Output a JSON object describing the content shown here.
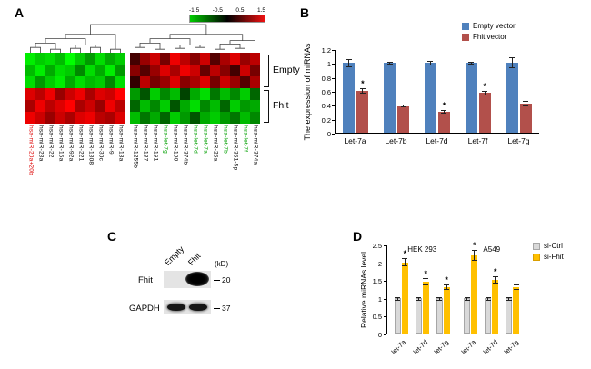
{
  "panels": {
    "a": "A",
    "b": "B",
    "c": "C",
    "d": "D"
  },
  "chart_data": {
    "heatmap": {
      "type": "heatmap",
      "colorscale": {
        "tick_labels": [
          "-1.5",
          "-0.5",
          "0.5",
          "1.5"
        ],
        "low_color": "#00cc00",
        "mid_color": "#000000",
        "high_color": "#ee1111"
      },
      "row_groups": [
        {
          "label": "Empty",
          "rows": 3
        },
        {
          "label": "Fhit",
          "rows": 3
        }
      ],
      "left_block_columns": 10,
      "columns": [
        {
          "label": "hsa-miR-20a+20b",
          "text_color": "#dd0000"
        },
        {
          "label": "hsa-miR-23a",
          "text_color": "#000000"
        },
        {
          "label": "hsa-miR-22",
          "text_color": "#000000"
        },
        {
          "label": "hsa-miR-15a",
          "text_color": "#000000"
        },
        {
          "label": "hsa-miR-92a",
          "text_color": "#000000"
        },
        {
          "label": "hsa-miR-221",
          "text_color": "#000000"
        },
        {
          "label": "hsa-miR-1308",
          "text_color": "#000000"
        },
        {
          "label": "hsa-miR-30c",
          "text_color": "#000000"
        },
        {
          "label": "hsa-miR-9",
          "text_color": "#000000"
        },
        {
          "label": "hsa-miR-18a",
          "text_color": "#000000"
        },
        {
          "label": "hsa-miR-1255b",
          "text_color": "#000000"
        },
        {
          "label": "hsa-miR-137",
          "text_color": "#000000"
        },
        {
          "label": "hsa-miR-191",
          "text_color": "#000000"
        },
        {
          "label": "hsa-let-7g",
          "text_color": "#00a000"
        },
        {
          "label": "hsa-miR-100",
          "text_color": "#000000"
        },
        {
          "label": "hsa-miR-374b",
          "text_color": "#000000"
        },
        {
          "label": "hsa-let-7d",
          "text_color": "#00a000"
        },
        {
          "label": "hsa-let-7a",
          "text_color": "#00a000"
        },
        {
          "label": "hsa-miR-26a",
          "text_color": "#000000"
        },
        {
          "label": "hsa-let-7b",
          "text_color": "#00a000"
        },
        {
          "label": "hsa-miR-361-5p",
          "text_color": "#000000"
        },
        {
          "label": "hsa-let-7f",
          "text_color": "#00a000"
        },
        {
          "label": "hsa-miR-374a",
          "text_color": "#000000"
        }
      ],
      "values": [
        [
          -1.4,
          -1.2,
          -1.3,
          -1.1,
          -1.5,
          -1.2,
          -0.9,
          -1.3,
          -1.0,
          -1.2,
          0.4,
          0.9,
          1.2,
          0.7,
          1.4,
          1.1,
          0.8,
          1.2,
          0.5,
          1.0,
          1.3,
          0.9,
          1.1
        ],
        [
          -1.1,
          -1.4,
          -1.0,
          -1.3,
          -1.2,
          -0.8,
          -1.3,
          -1.0,
          -1.4,
          -0.9,
          0.8,
          0.5,
          0.9,
          1.3,
          1.0,
          1.4,
          1.2,
          0.6,
          1.1,
          0.8,
          0.4,
          1.2,
          0.7
        ],
        [
          -1.3,
          -0.9,
          -1.2,
          -1.4,
          -1.0,
          -1.3,
          -1.1,
          -1.2,
          -0.8,
          -1.3,
          0.3,
          1.1,
          0.7,
          0.9,
          1.3,
          0.8,
          1.0,
          1.3,
          0.7,
          1.2,
          0.9,
          0.5,
          1.0
        ],
        [
          1.3,
          1.1,
          1.4,
          0.9,
          1.2,
          1.4,
          1.0,
          1.3,
          1.2,
          1.5,
          -0.9,
          -0.5,
          -1.2,
          -0.8,
          -1.1,
          -0.4,
          -1.0,
          -1.3,
          -0.7,
          -1.1,
          -0.8,
          -1.2,
          -0.6
        ],
        [
          1.0,
          1.4,
          1.1,
          1.3,
          1.5,
          1.0,
          1.2,
          0.9,
          1.4,
          1.1,
          -0.6,
          -1.1,
          -0.8,
          -1.2,
          -0.5,
          -1.0,
          -1.3,
          -0.8,
          -1.1,
          -0.6,
          -1.2,
          -0.9,
          -1.0
        ],
        [
          1.4,
          1.2,
          0.9,
          1.2,
          1.0,
          1.3,
          1.4,
          1.1,
          1.0,
          1.3,
          -1.1,
          -0.7,
          -1.0,
          -0.6,
          -1.2,
          -0.9,
          -0.5,
          -1.0,
          -1.2,
          -0.9,
          -0.7,
          -1.1,
          -0.8
        ]
      ]
    },
    "expression_bar": {
      "type": "bar",
      "ylabel": "The expression of miRNAs",
      "ylim": [
        0,
        1.2
      ],
      "ytick_labels": [
        "0",
        "0.2",
        "0.4",
        "0.6",
        "0.8",
        "1",
        "1.2"
      ],
      "categories": [
        "Let-7a",
        "Let-7b",
        "Let-7d",
        "Let-7f",
        "Let-7g"
      ],
      "sig_marker": "*",
      "series": [
        {
          "name": "Empty vector",
          "color": "#4f81bd",
          "values": [
            1.0,
            1.0,
            1.0,
            1.0,
            1.0
          ],
          "errors": [
            0.06,
            0.02,
            0.03,
            0.02,
            0.08
          ],
          "sig": [
            false,
            false,
            false,
            false,
            false
          ]
        },
        {
          "name": "Fhit vector",
          "color": "#b2504b",
          "values": [
            0.6,
            0.38,
            0.3,
            0.57,
            0.42
          ],
          "errors": [
            0.04,
            0.02,
            0.03,
            0.03,
            0.04
          ],
          "sig": [
            true,
            false,
            true,
            true,
            false
          ]
        }
      ]
    },
    "sirna_bar": {
      "type": "bar",
      "ylabel": "Relative miRNAs level",
      "ylim": [
        0,
        2.5
      ],
      "ytick_labels": [
        "0",
        "0.5",
        "1",
        "1.5",
        "2",
        "2.5"
      ],
      "sig_marker": "*",
      "series": [
        {
          "name": "si-Ctrl",
          "color": "#d9d9d9",
          "border": "#a6a6a6"
        },
        {
          "name": "si-Fhit",
          "color": "#ffc000",
          "border": "#d99e00"
        }
      ],
      "groups": [
        {
          "name": "HEK 293",
          "categories": [
            "let-7a",
            "let-7d",
            "let-7g"
          ],
          "ctrl_values": [
            1.0,
            1.0,
            1.0
          ],
          "ctrl_errors": [
            0.05,
            0.05,
            0.05
          ],
          "fhit_values": [
            2.0,
            1.45,
            1.3
          ],
          "fhit_errors": [
            0.12,
            0.1,
            0.08
          ],
          "fhit_sig": [
            true,
            true,
            true
          ]
        },
        {
          "name": "A549",
          "categories": [
            "let-7a",
            "let-7d",
            "let-7g"
          ],
          "ctrl_values": [
            1.0,
            1.0,
            1.0
          ],
          "ctrl_errors": [
            0.05,
            0.05,
            0.05
          ],
          "fhit_values": [
            2.2,
            1.5,
            1.3
          ],
          "fhit_errors": [
            0.15,
            0.1,
            0.08
          ],
          "fhit_sig": [
            true,
            true,
            false
          ]
        }
      ]
    }
  },
  "blot": {
    "lane_labels": [
      "Empty",
      "Fhit"
    ],
    "kd_label": "(kD)",
    "rows": [
      {
        "label": "Fhit",
        "marker": "20"
      },
      {
        "label": "GAPDH",
        "marker": "37"
      }
    ]
  }
}
